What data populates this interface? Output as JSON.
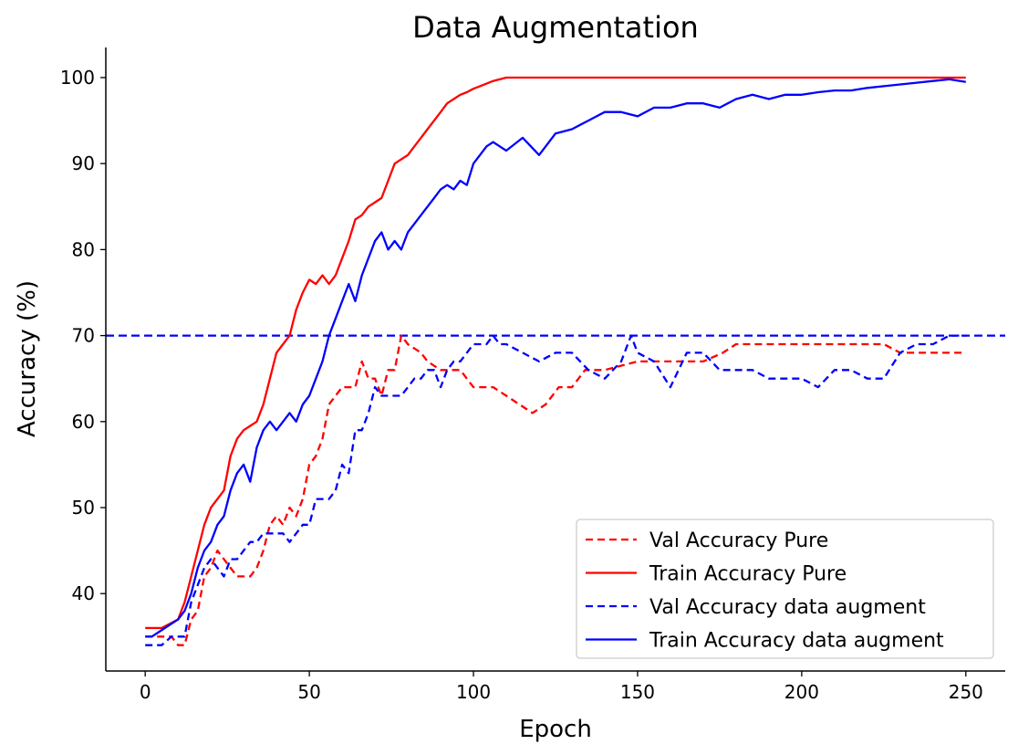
{
  "chart_data": {
    "type": "line",
    "title": "Data Augmentation",
    "xlabel": "Epoch",
    "ylabel": "Accuracy (%)",
    "xlim": [
      -12,
      262
    ],
    "ylim": [
      31,
      103.5
    ],
    "xticks": [
      0,
      50,
      100,
      150,
      200,
      250
    ],
    "yticks": [
      40,
      50,
      60,
      70,
      80,
      90,
      100
    ],
    "grid": false,
    "legend_position": "lower-right",
    "reference_line": {
      "y": 70,
      "color": "#0000ff",
      "style": "dashed"
    },
    "series": [
      {
        "name": "Val Accuracy Pure",
        "color": "#ff0000",
        "style": "dashed",
        "x": [
          0,
          8,
          10,
          12,
          14,
          16,
          18,
          20,
          22,
          24,
          26,
          28,
          30,
          32,
          34,
          36,
          38,
          40,
          42,
          44,
          46,
          48,
          50,
          52,
          54,
          56,
          58,
          60,
          62,
          64,
          66,
          68,
          70,
          72,
          74,
          76,
          78,
          80,
          84,
          86,
          90,
          94,
          96,
          100,
          102,
          106,
          110,
          114,
          118,
          122,
          126,
          130,
          134,
          140,
          150,
          160,
          170,
          176,
          180,
          190,
          200,
          210,
          220,
          225,
          230,
          240,
          250
        ],
        "values": [
          35,
          35,
          34,
          34,
          37,
          38,
          42,
          43,
          45,
          44,
          43,
          42,
          42,
          42,
          43,
          45,
          48,
          49,
          48,
          50,
          49,
          51,
          55,
          56,
          58,
          62,
          63,
          64,
          64,
          64,
          67,
          65,
          65,
          63,
          66,
          66,
          70,
          69,
          68,
          67,
          66,
          66,
          66,
          64,
          64,
          64,
          63,
          62,
          61,
          62,
          64,
          64,
          66,
          66,
          67,
          67,
          67,
          68,
          69,
          69,
          69,
          69,
          69,
          69,
          68,
          68,
          68
        ]
      },
      {
        "name": "Train Accuracy Pure",
        "color": "#ff0000",
        "style": "solid",
        "x": [
          0,
          5,
          10,
          12,
          14,
          16,
          18,
          20,
          22,
          24,
          26,
          28,
          30,
          32,
          34,
          36,
          38,
          40,
          42,
          44,
          46,
          48,
          50,
          52,
          54,
          56,
          58,
          60,
          62,
          64,
          66,
          68,
          70,
          72,
          74,
          76,
          78,
          80,
          82,
          84,
          86,
          88,
          90,
          92,
          94,
          96,
          98,
          100,
          102,
          104,
          106,
          108,
          110,
          120,
          130,
          150,
          200,
          250
        ],
        "values": [
          36,
          36,
          37,
          39,
          42,
          45,
          48,
          50,
          51,
          52,
          56,
          58,
          59,
          59.5,
          60,
          62,
          65,
          68,
          69,
          70,
          73,
          75,
          76.5,
          76,
          77,
          76,
          77,
          79,
          81,
          83.5,
          84,
          85,
          85.5,
          86,
          88,
          90,
          90.5,
          91,
          92,
          93,
          94,
          95,
          96,
          97,
          97.5,
          98,
          98.3,
          98.7,
          99,
          99.3,
          99.6,
          99.8,
          100,
          100,
          100,
          100,
          100,
          100
        ]
      },
      {
        "name": "Val Accuracy data augment",
        "color": "#0000ff",
        "style": "dashed",
        "x": [
          0,
          5,
          8,
          10,
          12,
          14,
          16,
          18,
          20,
          22,
          24,
          26,
          28,
          30,
          32,
          34,
          36,
          38,
          40,
          42,
          44,
          46,
          48,
          50,
          52,
          54,
          56,
          58,
          60,
          62,
          64,
          66,
          68,
          70,
          72,
          74,
          76,
          78,
          80,
          82,
          84,
          86,
          88,
          90,
          92,
          94,
          96,
          98,
          100,
          102,
          104,
          106,
          108,
          110,
          115,
          120,
          125,
          130,
          135,
          140,
          145,
          148,
          150,
          155,
          160,
          165,
          170,
          175,
          180,
          185,
          190,
          195,
          200,
          205,
          210,
          215,
          220,
          225,
          230,
          235,
          240,
          245,
          250
        ],
        "values": [
          34,
          34,
          35,
          35,
          35,
          39,
          41,
          43,
          44,
          43,
          42,
          44,
          44,
          45,
          46,
          46,
          47,
          47,
          47,
          47,
          46,
          47,
          48,
          48,
          51,
          51,
          51,
          52,
          55,
          54,
          59,
          59,
          61,
          64,
          63,
          63,
          63,
          63,
          64,
          65,
          65,
          66,
          66,
          64,
          66,
          67,
          67,
          68,
          69,
          69,
          69,
          70,
          69,
          69,
          68,
          67,
          68,
          68,
          66,
          65,
          67,
          70,
          68,
          67,
          64,
          68,
          68,
          66,
          66,
          66,
          65,
          65,
          65,
          64,
          66,
          66,
          65,
          65,
          68,
          69,
          69,
          70,
          70
        ]
      },
      {
        "name": "Train Accuracy data augment",
        "color": "#0000ff",
        "style": "solid",
        "x": [
          0,
          2,
          4,
          6,
          8,
          10,
          12,
          14,
          16,
          18,
          20,
          22,
          24,
          26,
          28,
          30,
          32,
          34,
          36,
          38,
          40,
          42,
          44,
          46,
          48,
          50,
          52,
          54,
          56,
          58,
          60,
          62,
          64,
          66,
          68,
          70,
          72,
          74,
          76,
          78,
          80,
          82,
          84,
          86,
          88,
          90,
          92,
          94,
          96,
          98,
          100,
          102,
          104,
          106,
          108,
          110,
          115,
          120,
          125,
          130,
          135,
          140,
          145,
          150,
          155,
          160,
          165,
          170,
          175,
          180,
          185,
          190,
          195,
          200,
          205,
          210,
          215,
          220,
          225,
          230,
          235,
          240,
          245,
          250
        ],
        "values": [
          35,
          35,
          35.5,
          36,
          36.5,
          37,
          38,
          40,
          43,
          45,
          46,
          48,
          49,
          52,
          54,
          55,
          53,
          57,
          59,
          60,
          59,
          60,
          61,
          60,
          62,
          63,
          65,
          67,
          70,
          72,
          74,
          76,
          74,
          77,
          79,
          81,
          82,
          80,
          81,
          80,
          82,
          83,
          84,
          85,
          86,
          87,
          87.5,
          87,
          88,
          87.5,
          90,
          91,
          92,
          92.5,
          92,
          91.5,
          93,
          91,
          93.5,
          94,
          95,
          96,
          96,
          95.5,
          96.5,
          96.5,
          97,
          97,
          96.5,
          97.5,
          98,
          97.5,
          98,
          98,
          98.3,
          98.5,
          98.5,
          98.8,
          99,
          99.2,
          99.4,
          99.6,
          99.8,
          99.5
        ]
      }
    ]
  }
}
